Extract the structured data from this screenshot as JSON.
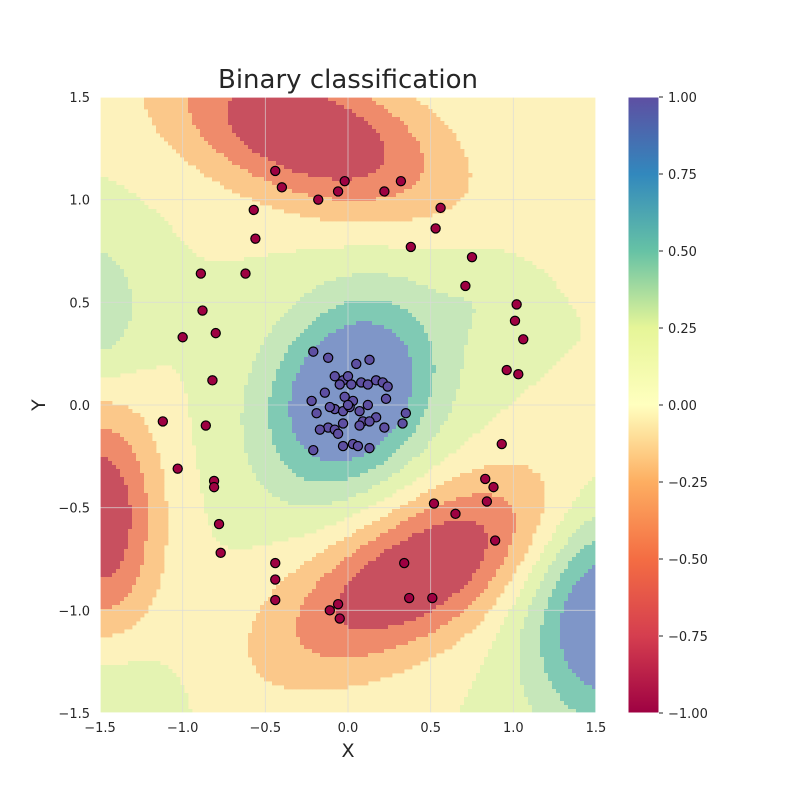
{
  "chart_data": {
    "type": "scatter",
    "subtype": "decision-surface-contour",
    "title": "Binary classification",
    "xlabel": "X",
    "ylabel": "Y",
    "xlim": [
      -1.5,
      1.5
    ],
    "ylim": [
      -1.5,
      1.5
    ],
    "grid": true,
    "x_ticks": [
      "−1.5",
      "−1.0",
      "−0.5",
      "0.0",
      "0.5",
      "1.0",
      "1.5"
    ],
    "y_ticks": [
      "−1.5",
      "−1.0",
      "−0.5",
      "0.0",
      "0.5",
      "1.0",
      "1.5"
    ],
    "colorbar": {
      "colormap": "Spectral",
      "range": [
        -1.0,
        1.0
      ],
      "ticks": [
        "−1.00",
        "−0.75",
        "−0.50",
        "−0.25",
        "0.00",
        "0.25",
        "0.50",
        "0.75",
        "1.00"
      ],
      "levels": [
        -1.0,
        -0.75,
        -0.5,
        -0.25,
        0.0,
        0.25,
        0.5,
        0.75,
        1.0
      ],
      "colors": [
        "#c8505f",
        "#ef8b6b",
        "#fbc88a",
        "#fdf2bc",
        "#e4f3b2",
        "#c6e7ba",
        "#80cab4",
        "#7f96c8"
      ]
    },
    "series": [
      {
        "class": 1,
        "color": "#5e4fa2",
        "points": [
          [
            -0.21,
            0.26
          ],
          [
            -0.12,
            0.23
          ],
          [
            0.05,
            0.2
          ],
          [
            0.13,
            0.22
          ],
          [
            -0.08,
            0.14
          ],
          [
            -0.03,
            0.12
          ],
          [
            0.0,
            0.14
          ],
          [
            0.08,
            0.11
          ],
          [
            0.12,
            0.1
          ],
          [
            0.17,
            0.12
          ],
          [
            0.21,
            0.11
          ],
          [
            0.24,
            0.09
          ],
          [
            -0.14,
            0.06
          ],
          [
            -0.05,
            0.1
          ],
          [
            0.02,
            0.1
          ],
          [
            -0.22,
            0.02
          ],
          [
            -0.02,
            0.04
          ],
          [
            0.03,
            0.02
          ],
          [
            0.23,
            0.03
          ],
          [
            -0.08,
            -0.02
          ],
          [
            -0.03,
            -0.03
          ],
          [
            0.01,
            -0.01
          ],
          [
            0.07,
            -0.03
          ],
          [
            0.12,
            0.0
          ],
          [
            -0.19,
            -0.04
          ],
          [
            -0.11,
            -0.01
          ],
          [
            0.17,
            -0.06
          ],
          [
            0.09,
            -0.08
          ],
          [
            0.13,
            -0.08
          ],
          [
            -0.03,
            -0.09
          ],
          [
            -0.12,
            -0.11
          ],
          [
            -0.08,
            -0.12
          ],
          [
            -0.17,
            -0.12
          ],
          [
            0.07,
            -0.1
          ],
          [
            0.22,
            -0.11
          ],
          [
            -0.06,
            -0.14
          ],
          [
            0.35,
            -0.04
          ],
          [
            0.33,
            -0.09
          ],
          [
            0.03,
            -0.19
          ],
          [
            -0.03,
            -0.2
          ],
          [
            0.06,
            -0.2
          ],
          [
            0.13,
            -0.21
          ],
          [
            -0.21,
            -0.22
          ],
          [
            0.0,
            0.0
          ]
        ]
      },
      {
        "class": -1,
        "color": "#9e0142",
        "points": [
          [
            -0.44,
            1.14
          ],
          [
            -0.4,
            1.06
          ],
          [
            -0.02,
            1.09
          ],
          [
            -0.06,
            1.04
          ],
          [
            -0.18,
            1.0
          ],
          [
            0.22,
            1.04
          ],
          [
            0.32,
            1.09
          ],
          [
            -0.57,
            0.95
          ],
          [
            0.56,
            0.96
          ],
          [
            0.53,
            0.86
          ],
          [
            -0.56,
            0.81
          ],
          [
            0.38,
            0.77
          ],
          [
            0.75,
            0.72
          ],
          [
            -0.89,
            0.64
          ],
          [
            -0.62,
            0.64
          ],
          [
            0.71,
            0.58
          ],
          [
            -0.88,
            0.46
          ],
          [
            1.02,
            0.49
          ],
          [
            1.01,
            0.41
          ],
          [
            -1.0,
            0.33
          ],
          [
            -0.8,
            0.35
          ],
          [
            1.06,
            0.32
          ],
          [
            0.96,
            0.17
          ],
          [
            1.03,
            0.15
          ],
          [
            -0.82,
            0.12
          ],
          [
            -1.12,
            -0.08
          ],
          [
            -0.86,
            -0.1
          ],
          [
            0.93,
            -0.19
          ],
          [
            -1.03,
            -0.31
          ],
          [
            0.83,
            -0.36
          ],
          [
            0.88,
            -0.4
          ],
          [
            -0.81,
            -0.37
          ],
          [
            -0.81,
            -0.4
          ],
          [
            0.52,
            -0.48
          ],
          [
            0.84,
            -0.47
          ],
          [
            0.65,
            -0.53
          ],
          [
            -0.78,
            -0.58
          ],
          [
            0.89,
            -0.66
          ],
          [
            -0.77,
            -0.72
          ],
          [
            -0.44,
            -0.77
          ],
          [
            0.34,
            -0.77
          ],
          [
            -0.44,
            -0.85
          ],
          [
            -0.44,
            -0.95
          ],
          [
            0.37,
            -0.94
          ],
          [
            0.51,
            -0.94
          ],
          [
            -0.06,
            -0.97
          ],
          [
            -0.11,
            -1.0
          ],
          [
            -0.05,
            -1.04
          ]
        ]
      }
    ]
  }
}
